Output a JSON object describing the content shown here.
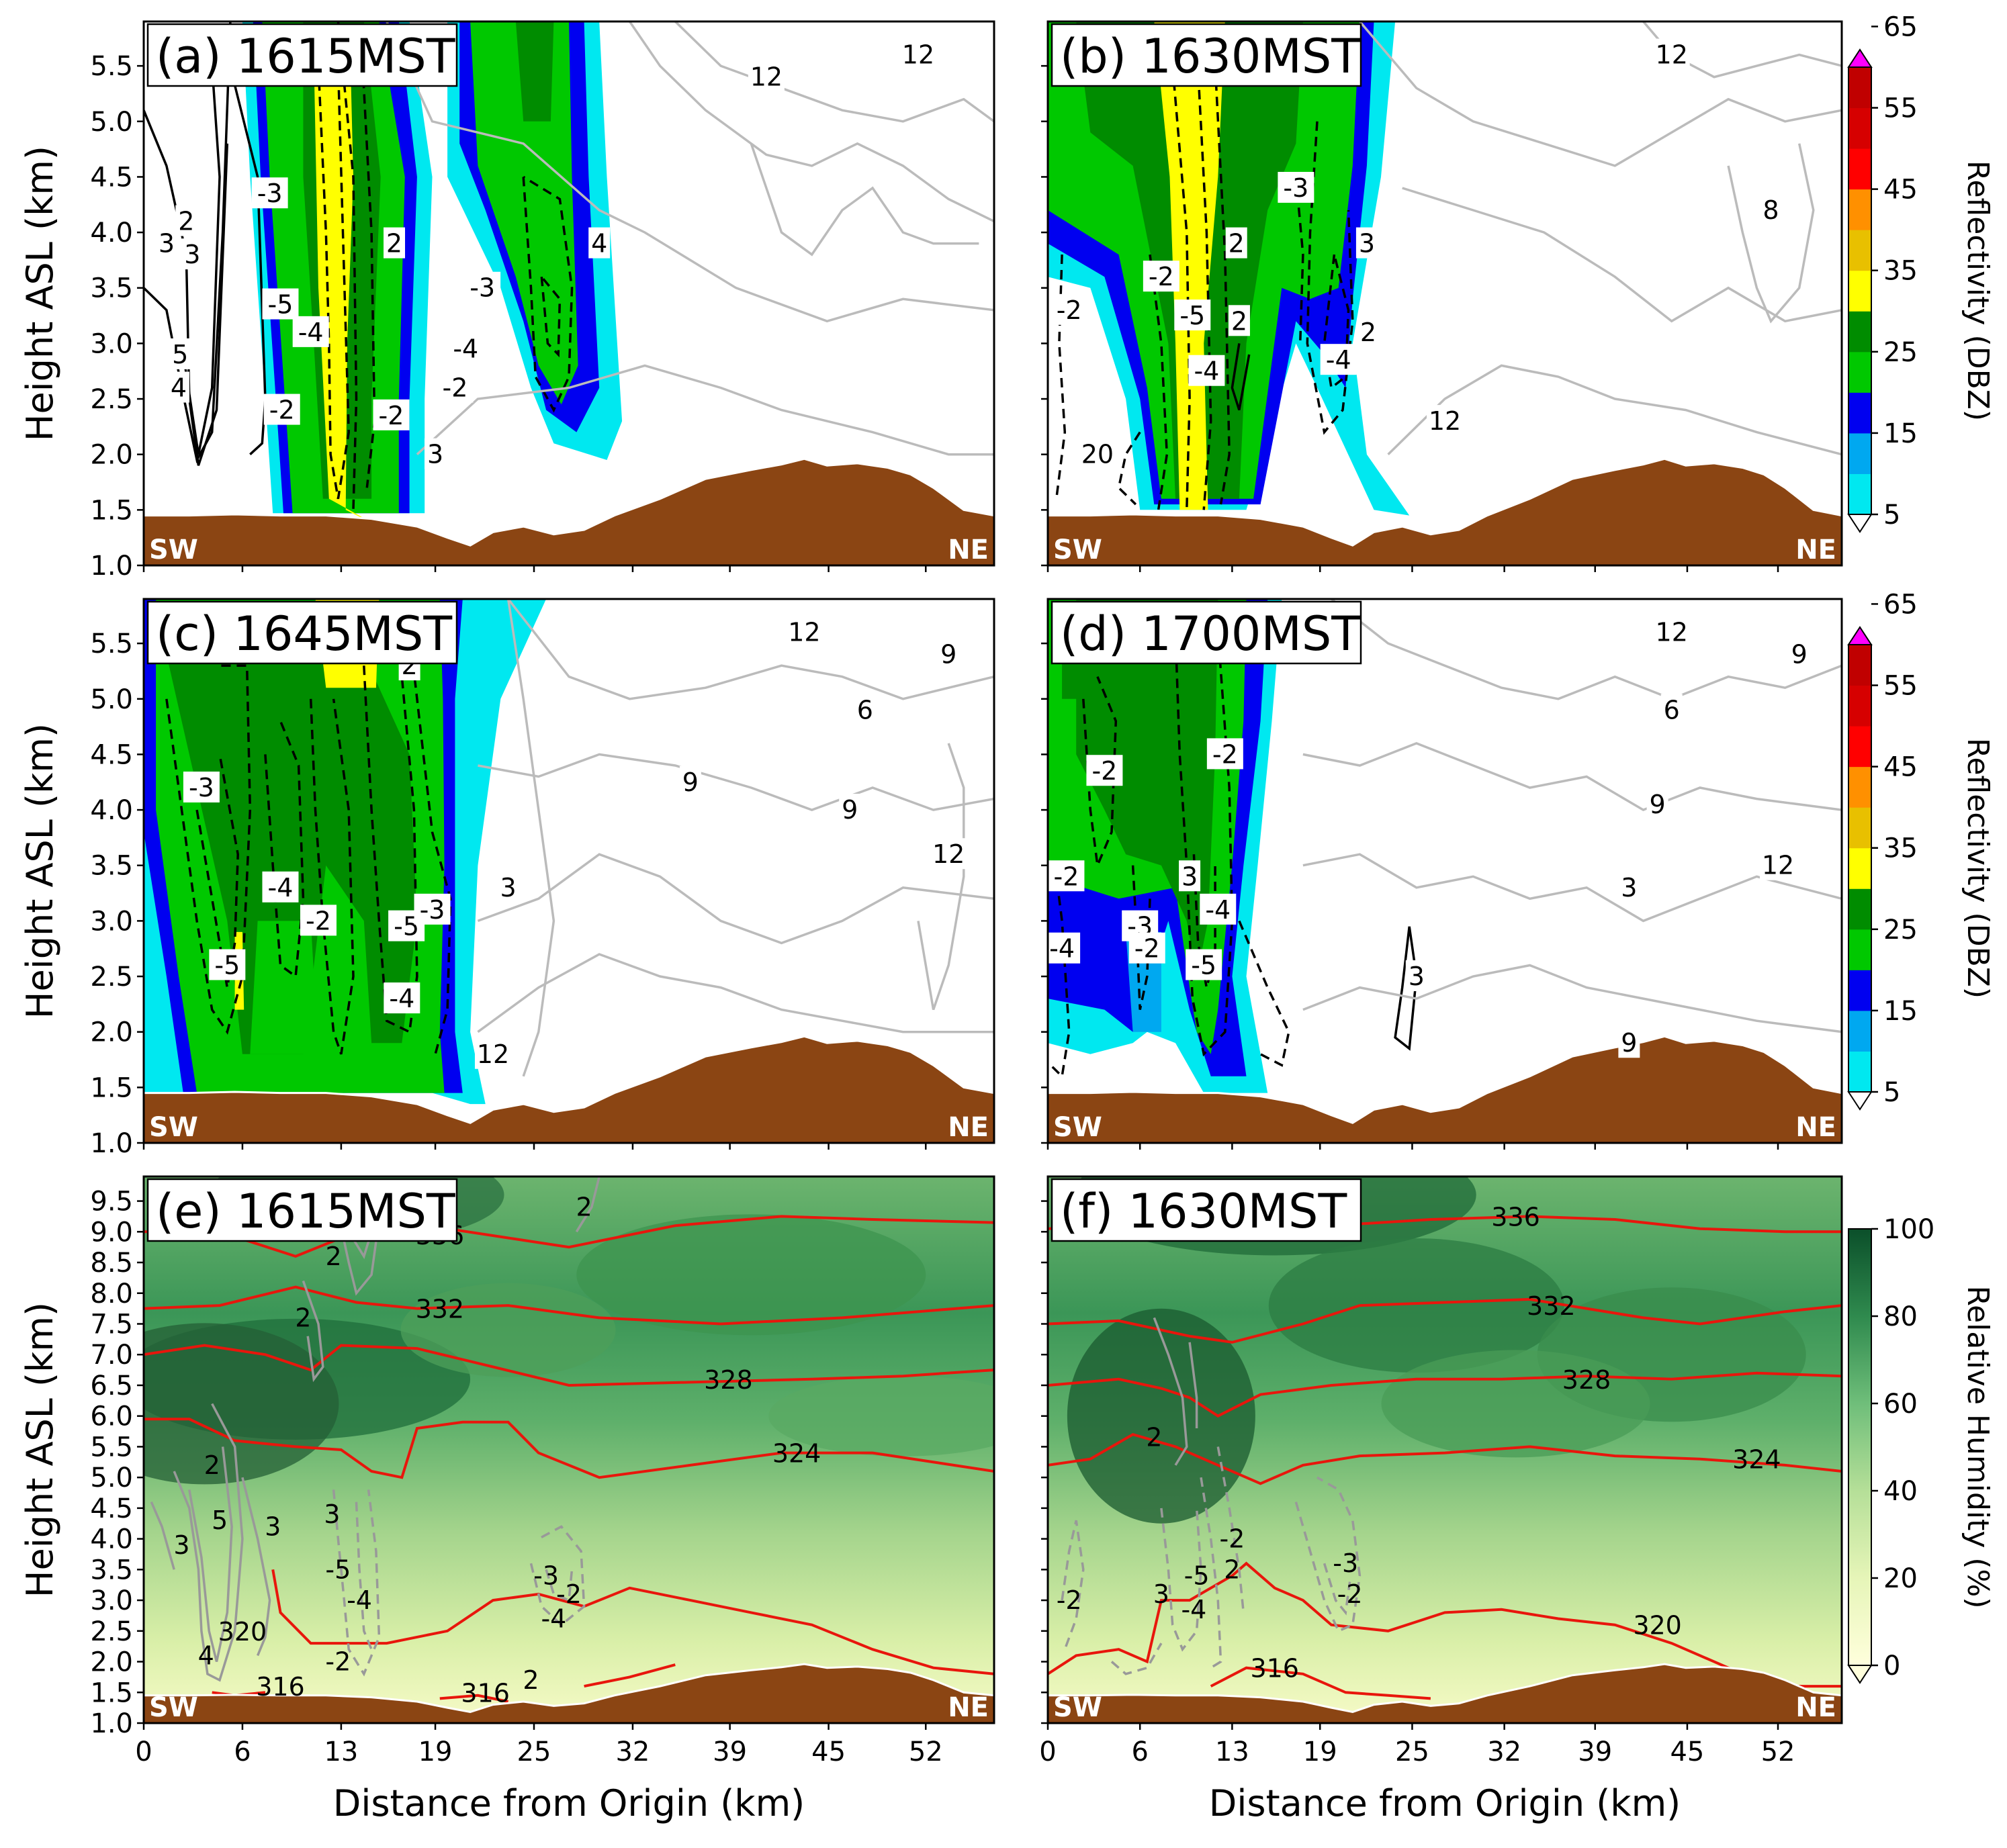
{
  "chart_data": [
    {
      "panel": "a",
      "type": "heatmap",
      "title": "(a) 1615MST",
      "field": "Reflectivity (DBZ)",
      "ylabel": "Height ASL (km)",
      "xlabel": "",
      "xlim": [
        0,
        56
      ],
      "ylim": [
        1.0,
        5.9
      ],
      "yticks": [
        "1.0",
        "1.5",
        "2.0",
        "2.5",
        "3.0",
        "3.5",
        "4.0",
        "4.5",
        "5.0",
        "5.5"
      ],
      "xticks": [],
      "left_label": "SW",
      "right_label": "NE",
      "echoes": [
        {
          "x_range": [
            7,
            19
          ],
          "top_km": 5.9,
          "max_dbz": 35
        },
        {
          "x_range": [
            20,
            31
          ],
          "top_km": 5.9,
          "max_dbz": 30
        }
      ],
      "contour_labels": [
        {
          "x": 8.3,
          "y": 4.35,
          "text": "-3"
        },
        {
          "x": 9.0,
          "y": 3.35,
          "text": "-5"
        },
        {
          "x": 11.0,
          "y": 3.1,
          "text": "-4"
        },
        {
          "x": 9.1,
          "y": 2.4,
          "text": "-2"
        },
        {
          "x": 16.5,
          "y": 3.9,
          "text": "2"
        },
        {
          "x": 22.3,
          "y": 3.5,
          "text": "-3"
        },
        {
          "x": 21.2,
          "y": 2.95,
          "text": "-4"
        },
        {
          "x": 20.5,
          "y": 2.6,
          "text": "-2"
        },
        {
          "x": 16.3,
          "y": 2.35,
          "text": "-2"
        },
        {
          "x": 19.2,
          "y": 2.0,
          "text": "3"
        },
        {
          "x": 2.8,
          "y": 4.1,
          "text": "2"
        },
        {
          "x": 3.2,
          "y": 3.8,
          "text": "3"
        },
        {
          "x": 1.5,
          "y": 3.9,
          "text": "3"
        },
        {
          "x": 2.4,
          "y": 2.9,
          "text": "5"
        },
        {
          "x": 2.3,
          "y": 2.6,
          "text": "4"
        },
        {
          "x": 41,
          "y": 5.4,
          "text": "12"
        },
        {
          "x": 51,
          "y": 5.6,
          "text": "12"
        },
        {
          "x": 30,
          "y": 3.9,
          "text": "4"
        }
      ]
    },
    {
      "panel": "b",
      "type": "heatmap",
      "title": "(b) 1630MST",
      "field": "Reflectivity (DBZ)",
      "ylabel": "",
      "xlabel": "",
      "xlim": [
        0,
        56
      ],
      "ylim": [
        1.0,
        5.9
      ],
      "yticks": [],
      "xticks": [],
      "left_label": "SW",
      "right_label": "NE",
      "echoes": [
        {
          "x_range": [
            0,
            24
          ],
          "top_km": 5.9,
          "max_dbz": 35
        }
      ],
      "contour_labels": [
        {
          "x": 17.5,
          "y": 4.4,
          "text": "-3"
        },
        {
          "x": 13.3,
          "y": 3.9,
          "text": "2"
        },
        {
          "x": 22.5,
          "y": 3.9,
          "text": "3"
        },
        {
          "x": 8.0,
          "y": 3.6,
          "text": "-2"
        },
        {
          "x": 10.2,
          "y": 3.25,
          "text": "-5"
        },
        {
          "x": 13.5,
          "y": 3.2,
          "text": "2"
        },
        {
          "x": 22.6,
          "y": 3.1,
          "text": "2"
        },
        {
          "x": 1.5,
          "y": 3.3,
          "text": "-2"
        },
        {
          "x": 11.2,
          "y": 2.75,
          "text": "-4"
        },
        {
          "x": 20.5,
          "y": 2.85,
          "text": "-4"
        },
        {
          "x": 44,
          "y": 5.6,
          "text": "12"
        },
        {
          "x": 51,
          "y": 4.2,
          "text": "8"
        },
        {
          "x": 28,
          "y": 2.3,
          "text": "12"
        },
        {
          "x": 3.5,
          "y": 2.0,
          "text": "20"
        }
      ]
    },
    {
      "panel": "c",
      "type": "heatmap",
      "title": "(c) 1645MST",
      "field": "Reflectivity (DBZ)",
      "ylabel": "Height ASL (km)",
      "xlabel": "",
      "xlim": [
        0,
        56
      ],
      "ylim": [
        1.0,
        5.9
      ],
      "yticks": [
        "1.0",
        "1.5",
        "2.0",
        "2.5",
        "3.0",
        "3.5",
        "4.0",
        "4.5",
        "5.0",
        "5.5"
      ],
      "xticks": [],
      "left_label": "SW",
      "right_label": "NE",
      "echoes": [
        {
          "x_range": [
            0,
            22
          ],
          "top_km": 5.9,
          "max_dbz": 35
        }
      ],
      "contour_labels": [
        {
          "x": 3.8,
          "y": 4.2,
          "text": "-3"
        },
        {
          "x": 17.5,
          "y": 5.3,
          "text": "2"
        },
        {
          "x": 9.0,
          "y": 3.3,
          "text": "-4"
        },
        {
          "x": 11.5,
          "y": 3.0,
          "text": "-2"
        },
        {
          "x": 5.5,
          "y": 2.6,
          "text": "-5"
        },
        {
          "x": 17.3,
          "y": 2.95,
          "text": "-5"
        },
        {
          "x": 19.0,
          "y": 3.1,
          "text": "-3"
        },
        {
          "x": 17.0,
          "y": 2.3,
          "text": "-4"
        },
        {
          "x": 43.5,
          "y": 5.6,
          "text": "12"
        },
        {
          "x": 53,
          "y": 5.4,
          "text": "9"
        },
        {
          "x": 47.5,
          "y": 4.9,
          "text": "6"
        },
        {
          "x": 46.5,
          "y": 4.0,
          "text": "9"
        },
        {
          "x": 53,
          "y": 3.6,
          "text": "12"
        },
        {
          "x": 24.0,
          "y": 3.3,
          "text": "3"
        },
        {
          "x": 36,
          "y": 4.25,
          "text": "9"
        },
        {
          "x": 23,
          "y": 1.8,
          "text": "12"
        }
      ]
    },
    {
      "panel": "d",
      "type": "heatmap",
      "title": "(d) 1700MST",
      "field": "Reflectivity (DBZ)",
      "ylabel": "",
      "xlabel": "",
      "xlim": [
        0,
        56
      ],
      "ylim": [
        1.0,
        5.9
      ],
      "yticks": [],
      "xticks": [],
      "left_label": "SW",
      "right_label": "NE",
      "echoes": [
        {
          "x_range": [
            0,
            16
          ],
          "top_km": 5.9,
          "max_dbz": 30
        }
      ],
      "contour_labels": [
        {
          "x": 4.0,
          "y": 4.35,
          "text": "-2"
        },
        {
          "x": 12.5,
          "y": 4.5,
          "text": "-2"
        },
        {
          "x": 1.3,
          "y": 3.4,
          "text": "-2"
        },
        {
          "x": 10.0,
          "y": 3.4,
          "text": "3"
        },
        {
          "x": 12.0,
          "y": 3.1,
          "text": "-4"
        },
        {
          "x": 6.5,
          "y": 2.95,
          "text": "-3"
        },
        {
          "x": 7.0,
          "y": 2.75,
          "text": "-2"
        },
        {
          "x": 11.0,
          "y": 2.6,
          "text": "-5"
        },
        {
          "x": 1.0,
          "y": 2.75,
          "text": "-4"
        },
        {
          "x": 26,
          "y": 2.5,
          "text": "3"
        },
        {
          "x": 44,
          "y": 5.6,
          "text": "12"
        },
        {
          "x": 53,
          "y": 5.4,
          "text": "9"
        },
        {
          "x": 44,
          "y": 4.9,
          "text": "6"
        },
        {
          "x": 43,
          "y": 4.05,
          "text": "9"
        },
        {
          "x": 41,
          "y": 3.3,
          "text": "3"
        },
        {
          "x": 41,
          "y": 1.9,
          "text": "9"
        },
        {
          "x": 51.5,
          "y": 3.5,
          "text": "12"
        }
      ]
    },
    {
      "panel": "e",
      "type": "heatmap",
      "title": "(e) 1615MST",
      "field": "Relative Humidity (%)",
      "ylabel": "Height ASL (km)",
      "xlabel": "Distance from Origin (km)",
      "xlim": [
        0,
        56
      ],
      "ylim": [
        1.0,
        9.9
      ],
      "yticks": [
        "1.0",
        "1.5",
        "2.0",
        "2.5",
        "3.0",
        "3.5",
        "4.0",
        "4.5",
        "5.0",
        "5.5",
        "6.0",
        "6.5",
        "7.0",
        "7.5",
        "8.0",
        "8.5",
        "9.0",
        "9.5"
      ],
      "xticks": [
        "0",
        "6",
        "13",
        "19",
        "25",
        "32",
        "39",
        "45",
        "52"
      ],
      "left_label": "SW",
      "right_label": "NE",
      "theta_contours": [
        {
          "value": "336",
          "label_x": 19.5,
          "label_y": 8.95
        },
        {
          "value": "332",
          "label_x": 19.5,
          "label_y": 7.75
        },
        {
          "value": "328",
          "label_x": 38.5,
          "label_y": 6.6
        },
        {
          "value": "324",
          "label_x": 43.0,
          "label_y": 5.4
        },
        {
          "value": "320",
          "label_x": 6.5,
          "label_y": 2.5
        },
        {
          "value": "316",
          "label_x": 9.0,
          "label_y": 1.6
        },
        {
          "value": "316",
          "label_x": 22.5,
          "label_y": 1.5
        }
      ],
      "contour_labels": [
        {
          "x": 29,
          "y": 9.4,
          "text": "2"
        },
        {
          "x": 12.5,
          "y": 8.6,
          "text": "2"
        },
        {
          "x": 10.5,
          "y": 7.6,
          "text": "2"
        },
        {
          "x": 4.5,
          "y": 5.2,
          "text": "2"
        },
        {
          "x": 5.0,
          "y": 4.3,
          "text": "5"
        },
        {
          "x": 2.5,
          "y": 3.9,
          "text": "3"
        },
        {
          "x": 8.5,
          "y": 4.2,
          "text": "3"
        },
        {
          "x": 12.4,
          "y": 4.4,
          "text": "3"
        },
        {
          "x": 12.8,
          "y": 3.5,
          "text": "-5"
        },
        {
          "x": 14.2,
          "y": 3.0,
          "text": "-4"
        },
        {
          "x": 12.8,
          "y": 2.0,
          "text": "-2"
        },
        {
          "x": 4.1,
          "y": 2.1,
          "text": "4"
        },
        {
          "x": 26.5,
          "y": 3.4,
          "text": "-3"
        },
        {
          "x": 28.0,
          "y": 3.1,
          "text": "-2"
        },
        {
          "x": 27.0,
          "y": 2.7,
          "text": "-4"
        },
        {
          "x": 25.5,
          "y": 1.7,
          "text": "2"
        }
      ]
    },
    {
      "panel": "f",
      "type": "heatmap",
      "title": "(f) 1630MST",
      "field": "Relative Humidity (%)",
      "ylabel": "",
      "xlabel": "Distance from Origin (km)",
      "xlim": [
        0,
        56
      ],
      "ylim": [
        1.0,
        9.9
      ],
      "yticks": [],
      "xticks": [
        "0",
        "6",
        "13",
        "19",
        "25",
        "32",
        "39",
        "45",
        "52"
      ],
      "left_label": "SW",
      "right_label": "NE",
      "theta_contours": [
        {
          "value": "336",
          "label_x": 33.0,
          "label_y": 9.25
        },
        {
          "value": "332",
          "label_x": 35.5,
          "label_y": 7.8
        },
        {
          "value": "328",
          "label_x": 38.0,
          "label_y": 6.6
        },
        {
          "value": "324",
          "label_x": 50.0,
          "label_y": 5.3
        },
        {
          "value": "320",
          "label_x": 43.0,
          "label_y": 2.6
        },
        {
          "value": "316",
          "label_x": 16.0,
          "label_y": 1.9
        }
      ],
      "contour_labels": [
        {
          "x": 7.5,
          "y": 5.65,
          "text": "2"
        },
        {
          "x": 13.0,
          "y": 4.0,
          "text": "-2"
        },
        {
          "x": 13.0,
          "y": 3.5,
          "text": "2"
        },
        {
          "x": 10.5,
          "y": 3.4,
          "text": "-5"
        },
        {
          "x": 10.3,
          "y": 2.85,
          "text": "-4"
        },
        {
          "x": 8.0,
          "y": 3.1,
          "text": "3"
        },
        {
          "x": 21.0,
          "y": 3.6,
          "text": "-3"
        },
        {
          "x": 21.3,
          "y": 3.1,
          "text": "-2"
        },
        {
          "x": 1.5,
          "y": 3.0,
          "text": "-2"
        }
      ]
    }
  ],
  "colorbars": [
    {
      "label": "Reflectivity (DBZ)",
      "ticks": [
        "5",
        "15",
        "25",
        "35",
        "45",
        "55",
        "65"
      ],
      "colors": [
        "#00e8f0",
        "#00a8f0",
        "#0000f0",
        "#00c800",
        "#008c00",
        "#ffff00",
        "#e8c000",
        "#ff9000",
        "#ff0000",
        "#d60000",
        "#c00000",
        "#ff00ff"
      ]
    },
    {
      "label": "Reflectivity (DBZ)",
      "ticks": [
        "5",
        "15",
        "25",
        "35",
        "45",
        "55",
        "65"
      ],
      "colors": [
        "#00e8f0",
        "#00a8f0",
        "#0000f0",
        "#00c800",
        "#008c00",
        "#ffff00",
        "#e8c000",
        "#ff9000",
        "#ff0000",
        "#d60000",
        "#c00000",
        "#ff00ff"
      ]
    },
    {
      "label": "Relative Humidity (%)",
      "ticks": [
        "0",
        "20",
        "40",
        "60",
        "80",
        "100"
      ],
      "colors": [
        "#ffffe0",
        "#e6f5b8",
        "#b9e19b",
        "#7dc582",
        "#3d9a5a",
        "#0e5a32"
      ]
    }
  ]
}
